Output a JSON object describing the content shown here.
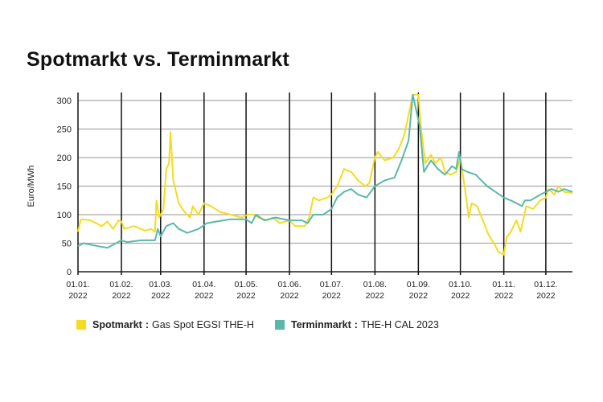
{
  "chart_data": {
    "type": "line",
    "title": "Spotmarkt vs. Terminmarkt",
    "ylabel": "Euro/MWh",
    "xlabel": "",
    "ylim": [
      0,
      300
    ],
    "xlim": [
      "2022-01-01",
      "2022-12-20"
    ],
    "yticks": [
      0,
      50,
      100,
      150,
      200,
      250,
      300
    ],
    "xticks": [
      {
        "date": "2022-01-01",
        "l1": "01.01.",
        "l2": "2022"
      },
      {
        "date": "2022-02-01",
        "l1": "01.02.",
        "l2": "2022"
      },
      {
        "date": "2022-03-01",
        "l1": "01.03.",
        "l2": "2022"
      },
      {
        "date": "2022-04-01",
        "l1": "01.04.",
        "l2": "2022"
      },
      {
        "date": "2022-05-01",
        "l1": "01.05.",
        "l2": "2022"
      },
      {
        "date": "2022-06-01",
        "l1": "01.06.",
        "l2": "2022"
      },
      {
        "date": "2022-07-01",
        "l1": "01.07.",
        "l2": "2022"
      },
      {
        "date": "2022-08-01",
        "l1": "01.08.",
        "l2": "2022"
      },
      {
        "date": "2022-09-01",
        "l1": "01.09.",
        "l2": "2022"
      },
      {
        "date": "2022-10-01",
        "l1": "01.10.",
        "l2": "2022"
      },
      {
        "date": "2022-11-01",
        "l1": "01.11.",
        "l2": "2022"
      },
      {
        "date": "2022-12-01",
        "l1": "01.12.",
        "l2": "2022"
      }
    ],
    "grid": {
      "horizontal": true,
      "vertical_month_lines": true
    },
    "legend_position": "bottom",
    "series": [
      {
        "name": "Spotmarkt",
        "description": "Gas Spot EGSI THE-H",
        "color": "#f5dc1e",
        "points": [
          [
            "2022-01-01",
            70
          ],
          [
            "2022-01-03",
            92
          ],
          [
            "2022-01-10",
            90
          ],
          [
            "2022-01-18",
            80
          ],
          [
            "2022-01-22",
            88
          ],
          [
            "2022-01-26",
            75
          ],
          [
            "2022-01-30",
            90
          ],
          [
            "2022-02-01",
            88
          ],
          [
            "2022-02-03",
            75
          ],
          [
            "2022-02-10",
            80
          ],
          [
            "2022-02-18",
            72
          ],
          [
            "2022-02-22",
            75
          ],
          [
            "2022-02-25",
            70
          ],
          [
            "2022-02-26",
            125
          ],
          [
            "2022-02-28",
            95
          ],
          [
            "2022-03-03",
            110
          ],
          [
            "2022-03-05",
            180
          ],
          [
            "2022-03-07",
            190
          ],
          [
            "2022-03-08",
            245
          ],
          [
            "2022-03-10",
            160
          ],
          [
            "2022-03-14",
            120
          ],
          [
            "2022-03-18",
            105
          ],
          [
            "2022-03-22",
            95
          ],
          [
            "2022-03-24",
            115
          ],
          [
            "2022-03-28",
            100
          ],
          [
            "2022-04-01",
            120
          ],
          [
            "2022-04-06",
            115
          ],
          [
            "2022-04-12",
            105
          ],
          [
            "2022-04-20",
            100
          ],
          [
            "2022-04-28",
            95
          ],
          [
            "2022-05-02",
            100
          ],
          [
            "2022-05-06",
            100
          ],
          [
            "2022-05-10",
            95
          ],
          [
            "2022-05-16",
            90
          ],
          [
            "2022-05-20",
            95
          ],
          [
            "2022-05-25",
            85
          ],
          [
            "2022-06-01",
            90
          ],
          [
            "2022-06-05",
            80
          ],
          [
            "2022-06-12",
            80
          ],
          [
            "2022-06-15",
            95
          ],
          [
            "2022-06-18",
            130
          ],
          [
            "2022-06-22",
            125
          ],
          [
            "2022-06-28",
            130
          ],
          [
            "2022-07-01",
            135
          ],
          [
            "2022-07-05",
            150
          ],
          [
            "2022-07-10",
            180
          ],
          [
            "2022-07-15",
            175
          ],
          [
            "2022-07-20",
            160
          ],
          [
            "2022-07-25",
            150
          ],
          [
            "2022-07-28",
            155
          ],
          [
            "2022-08-01",
            200
          ],
          [
            "2022-08-03",
            210
          ],
          [
            "2022-08-08",
            195
          ],
          [
            "2022-08-14",
            200
          ],
          [
            "2022-08-18",
            215
          ],
          [
            "2022-08-22",
            240
          ],
          [
            "2022-08-25",
            275
          ],
          [
            "2022-08-28",
            310
          ],
          [
            "2022-09-01",
            310
          ],
          [
            "2022-09-03",
            250
          ],
          [
            "2022-09-06",
            190
          ],
          [
            "2022-09-10",
            205
          ],
          [
            "2022-09-13",
            190
          ],
          [
            "2022-09-17",
            200
          ],
          [
            "2022-09-20",
            175
          ],
          [
            "2022-09-24",
            170
          ],
          [
            "2022-09-28",
            175
          ],
          [
            "2022-10-01",
            200
          ],
          [
            "2022-10-04",
            150
          ],
          [
            "2022-10-07",
            95
          ],
          [
            "2022-10-09",
            120
          ],
          [
            "2022-10-13",
            115
          ],
          [
            "2022-10-17",
            90
          ],
          [
            "2022-10-21",
            65
          ],
          [
            "2022-10-25",
            50
          ],
          [
            "2022-10-28",
            35
          ],
          [
            "2022-11-01",
            30
          ],
          [
            "2022-11-03",
            60
          ],
          [
            "2022-11-06",
            70
          ],
          [
            "2022-11-10",
            90
          ],
          [
            "2022-11-13",
            70
          ],
          [
            "2022-11-17",
            115
          ],
          [
            "2022-11-22",
            110
          ],
          [
            "2022-11-27",
            125
          ],
          [
            "2022-12-01",
            130
          ],
          [
            "2022-12-03",
            145
          ],
          [
            "2022-12-07",
            135
          ],
          [
            "2022-12-10",
            150
          ],
          [
            "2022-12-14",
            140
          ],
          [
            "2022-12-20",
            138
          ]
        ]
      },
      {
        "name": "Terminmarkt",
        "description": "THE-H CAL 2023",
        "color": "#5bb8a9",
        "points": [
          [
            "2022-01-01",
            45
          ],
          [
            "2022-01-05",
            50
          ],
          [
            "2022-01-15",
            45
          ],
          [
            "2022-01-22",
            42
          ],
          [
            "2022-02-01",
            55
          ],
          [
            "2022-02-05",
            52
          ],
          [
            "2022-02-15",
            55
          ],
          [
            "2022-02-25",
            55
          ],
          [
            "2022-02-27",
            75
          ],
          [
            "2022-03-01",
            62
          ],
          [
            "2022-03-05",
            80
          ],
          [
            "2022-03-10",
            85
          ],
          [
            "2022-03-14",
            75
          ],
          [
            "2022-03-20",
            68
          ],
          [
            "2022-03-28",
            75
          ],
          [
            "2022-04-03",
            85
          ],
          [
            "2022-04-10",
            88
          ],
          [
            "2022-04-20",
            92
          ],
          [
            "2022-05-01",
            92
          ],
          [
            "2022-05-05",
            85
          ],
          [
            "2022-05-08",
            100
          ],
          [
            "2022-05-14",
            90
          ],
          [
            "2022-05-22",
            95
          ],
          [
            "2022-06-01",
            90
          ],
          [
            "2022-06-10",
            90
          ],
          [
            "2022-06-14",
            85
          ],
          [
            "2022-06-18",
            100
          ],
          [
            "2022-06-25",
            100
          ],
          [
            "2022-07-01",
            110
          ],
          [
            "2022-07-05",
            130
          ],
          [
            "2022-07-10",
            140
          ],
          [
            "2022-07-15",
            145
          ],
          [
            "2022-07-20",
            135
          ],
          [
            "2022-07-26",
            130
          ],
          [
            "2022-08-01",
            150
          ],
          [
            "2022-08-08",
            160
          ],
          [
            "2022-08-15",
            165
          ],
          [
            "2022-08-20",
            195
          ],
          [
            "2022-08-25",
            230
          ],
          [
            "2022-08-28",
            310
          ],
          [
            "2022-09-02",
            255
          ],
          [
            "2022-09-05",
            175
          ],
          [
            "2022-09-10",
            195
          ],
          [
            "2022-09-15",
            180
          ],
          [
            "2022-09-20",
            170
          ],
          [
            "2022-09-25",
            185
          ],
          [
            "2022-09-28",
            180
          ],
          [
            "2022-09-30",
            210
          ],
          [
            "2022-10-02",
            180
          ],
          [
            "2022-10-06",
            175
          ],
          [
            "2022-10-12",
            170
          ],
          [
            "2022-10-20",
            150
          ],
          [
            "2022-10-26",
            140
          ],
          [
            "2022-11-01",
            130
          ],
          [
            "2022-11-06",
            125
          ],
          [
            "2022-11-10",
            120
          ],
          [
            "2022-11-14",
            115
          ],
          [
            "2022-11-16",
            125
          ],
          [
            "2022-11-20",
            125
          ],
          [
            "2022-11-27",
            135
          ],
          [
            "2022-12-01",
            140
          ],
          [
            "2022-12-05",
            145
          ],
          [
            "2022-12-10",
            140
          ],
          [
            "2022-12-14",
            145
          ],
          [
            "2022-12-20",
            140
          ]
        ]
      }
    ]
  }
}
